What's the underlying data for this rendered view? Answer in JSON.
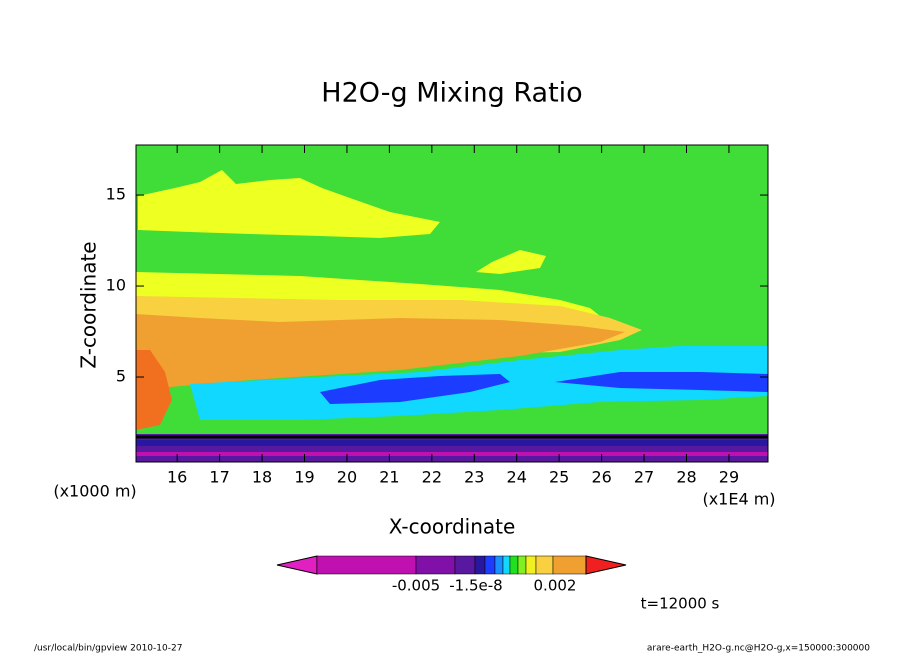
{
  "chart_data": {
    "type": "contour",
    "title": "H2O-g Mixing Ratio",
    "x_label": "X-coordinate",
    "y_label": "Z-coordinate",
    "x_unit": "(x1000 m)",
    "x_scale": "(x1E4 m)",
    "xlim": [
      15.03,
      29.92
    ],
    "xticks": [
      16,
      17,
      18,
      19,
      20,
      21,
      22,
      23,
      24,
      25,
      26,
      27,
      28,
      29
    ],
    "ylim": [
      0.33,
      17.75
    ],
    "yticks": [
      5,
      10,
      15
    ],
    "colorbar": {
      "colors": [
        "#e020c0",
        "#c010b0",
        "#8010a8",
        "#5818a0",
        "#2818a0",
        "#1c3cff",
        "#1890ff",
        "#10d8ff",
        "#20e020",
        "#80f020",
        "#f0f020",
        "#f8d040",
        "#f0a030",
        "#f07020",
        "#f02020"
      ],
      "labels": [
        "-0.005",
        "-1.5e-8",
        "0.002"
      ]
    },
    "time_label": "t=12000 s",
    "footer_left": "/usr/local/bin/gpview  2010-10-27",
    "footer_right": "arare-earth_H2O-g.nc@H2O-g,x=150000:300000"
  }
}
